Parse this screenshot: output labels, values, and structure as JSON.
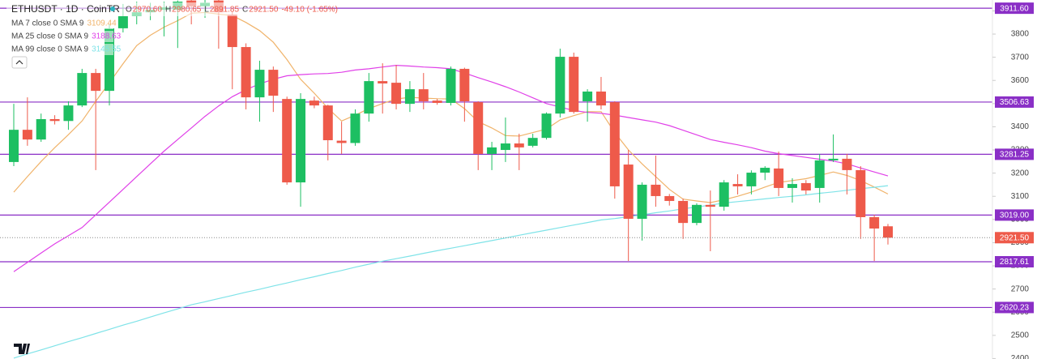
{
  "chart_data": {
    "type": "candlestick",
    "title": "ETHUSDT · 1D · CoinTR",
    "ohlc_legend": [
      {
        "key": "O",
        "value": "2970.60"
      },
      {
        "key": "H",
        "value": "2980.65"
      },
      {
        "key": "L",
        "value": "2891.85"
      },
      {
        "key": "C",
        "value": "2921.50"
      }
    ],
    "change": "-49.10 (-1.65%)",
    "up_color": "#1dbf62",
    "down_color": "#ee5a4a",
    "candles": {
      "open": [
        3248,
        3387,
        3345,
        3433,
        3425,
        3492,
        3632,
        3555,
        3825,
        3877,
        3894,
        3905,
        3905,
        3945,
        3920,
        3945,
        3884,
        3744,
        3527,
        3646,
        3520,
        3160,
        3513,
        3492,
        3340,
        3330,
        3457,
        3597,
        3590,
        3499,
        3562,
        3513,
        3503,
        3650,
        3506,
        3283,
        3300,
        3328,
        3318,
        3352,
        3457,
        3702,
        3510,
        3552,
        3506,
        3237,
        3003,
        3150,
        3101,
        3080,
        2985,
        3063,
        3055,
        3153,
        3143,
        3202,
        3220,
        3136,
        3157,
        3136,
        3255,
        3262,
        3213,
        3010,
        2970.6
      ],
      "high": [
        3499,
        3527,
        3457,
        3450,
        3510,
        3650,
        3650,
        3842,
        3930,
        3940,
        3935,
        3940,
        3945,
        3947,
        3947,
        3947,
        3900,
        3760,
        3685,
        3660,
        3530,
        3545,
        3530,
        3495,
        3422,
        3475,
        3632,
        3674,
        3667,
        3597,
        3632,
        3520,
        3660,
        3655,
        3510,
        3335,
        3440,
        3370,
        3370,
        3462,
        3737,
        3720,
        3562,
        3615,
        3510,
        3300,
        3160,
        3276,
        3110,
        3090,
        3070,
        3125,
        3170,
        3195,
        3212,
        3230,
        3293,
        3178,
        3170,
        3283,
        3367,
        3283,
        3230,
        3020,
        2980.65
      ],
      "low": [
        3230,
        3318,
        3335,
        3410,
        3387,
        3485,
        3213,
        3492,
        3807,
        3842,
        3860,
        3790,
        3740,
        3842,
        3870,
        3737,
        3562,
        3475,
        3422,
        3464,
        3150,
        3055,
        3480,
        3255,
        3283,
        3318,
        3422,
        3457,
        3475,
        3464,
        3475,
        3495,
        3492,
        3422,
        3213,
        3213,
        3248,
        3213,
        3311,
        3345,
        3440,
        3457,
        3422,
        3475,
        3090,
        2821,
        2909,
        3055,
        3060,
        2916,
        2975,
        2863,
        3038,
        3108,
        3108,
        3170,
        3101,
        3073,
        3108,
        3073,
        3248,
        3108,
        2916,
        2821,
        2891.85
      ],
      "close": [
        3387,
        3345,
        3433,
        3425,
        3492,
        3632,
        3555,
        3825,
        3877,
        3894,
        3905,
        3915,
        3940,
        3920,
        3935,
        3894,
        3744,
        3527,
        3646,
        3534,
        3160,
        3520,
        3492,
        3342,
        3330,
        3457,
        3597,
        3587,
        3499,
        3562,
        3510,
        3503,
        3650,
        3510,
        3283,
        3311,
        3328,
        3311,
        3352,
        3457,
        3702,
        3464,
        3552,
        3492,
        3143,
        3003,
        3150,
        3101,
        3080,
        2985,
        3063,
        3055,
        3160,
        3143,
        3202,
        3223,
        3136,
        3153,
        3125,
        3255,
        3262,
        3213,
        3010,
        2961,
        2921.5
      ]
    },
    "series": [
      {
        "name": "MA 7 close 0 SMA 9",
        "color": "#f0b36a",
        "legend_value": 3109.44,
        "values": [
          3118,
          3185,
          3250,
          3310,
          3366,
          3425,
          3510,
          3590,
          3672,
          3750,
          3795,
          3830,
          3858,
          3890,
          3893,
          3886,
          3880,
          3850,
          3815,
          3765,
          3690,
          3605,
          3545,
          3480,
          3425,
          3450,
          3478,
          3500,
          3520,
          3527,
          3524,
          3521,
          3520,
          3478,
          3422,
          3395,
          3362,
          3360,
          3375,
          3390,
          3430,
          3448,
          3465,
          3465,
          3375,
          3300,
          3240,
          3185,
          3130,
          3088,
          3080,
          3073,
          3085,
          3100,
          3118,
          3140,
          3160,
          3168,
          3176,
          3190,
          3205,
          3190,
          3168,
          3140,
          3110
        ]
      },
      {
        "name": "MA 25 close 0 SMA 9",
        "color": "#e040e8",
        "legend_value": 3188.63,
        "values": [
          2775,
          2815,
          2855,
          2895,
          2930,
          2965,
          3020,
          3075,
          3130,
          3185,
          3240,
          3295,
          3345,
          3395,
          3445,
          3490,
          3530,
          3560,
          3585,
          3605,
          3620,
          3625,
          3628,
          3630,
          3635,
          3645,
          3650,
          3658,
          3665,
          3662,
          3658,
          3655,
          3650,
          3632,
          3612,
          3593,
          3573,
          3550,
          3525,
          3500,
          3485,
          3470,
          3462,
          3458,
          3450,
          3440,
          3430,
          3420,
          3405,
          3385,
          3365,
          3345,
          3333,
          3322,
          3310,
          3295,
          3284,
          3276,
          3268,
          3260,
          3252,
          3240,
          3222,
          3205,
          3188
        ]
      },
      {
        "name": "MA 99 close 0 SMA 9",
        "color": "#7fe3e8",
        "legend_value": 3145.55,
        "values": [
          2402,
          2420,
          2437,
          2455,
          2473,
          2490,
          2508,
          2526,
          2544,
          2561,
          2579,
          2597,
          2614,
          2632,
          2645,
          2659,
          2672,
          2686,
          2699,
          2713,
          2726,
          2740,
          2753,
          2767,
          2780,
          2794,
          2807,
          2820,
          2831,
          2842,
          2854,
          2865,
          2876,
          2887,
          2898,
          2909,
          2920,
          2932,
          2943,
          2954,
          2965,
          2976,
          2987,
          2998,
          3004,
          3012,
          3020,
          3029,
          3037,
          3046,
          3054,
          3062,
          3071,
          3077,
          3083,
          3089,
          3095,
          3100,
          3106,
          3113,
          3119,
          3126,
          3133,
          3139,
          3146
        ]
      }
    ],
    "ylim": [
      2398,
      3947
    ],
    "yticks": [
      2400,
      2500,
      2600,
      2700,
      2800,
      2900,
      3000,
      3100,
      3200,
      3300,
      3400,
      3500,
      3600,
      3700,
      3800,
      3900
    ],
    "levels": [
      {
        "value": 3911.6,
        "label": "3911.60"
      },
      3506.63,
      3281.25,
      {
        "value": 3019,
        "label": "3019.00"
      },
      2817.61,
      2620.23
    ],
    "level_color": "#8a2fc6",
    "last_price": {
      "value": 2921.5,
      "label": "2921.50"
    },
    "grid": false
  }
}
